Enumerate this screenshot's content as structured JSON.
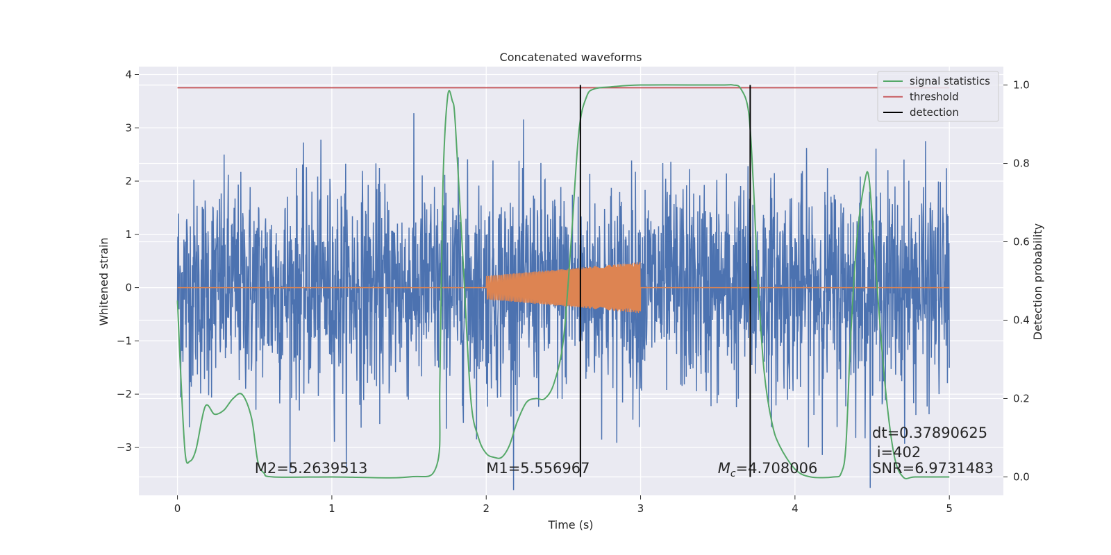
{
  "chart_data": {
    "type": "line",
    "title": "Concatenated waveforms",
    "xlabel": "Time (s)",
    "ylabel_left": "Whitened strain",
    "ylabel_right": "Detection probability",
    "xlim": [
      -0.25,
      5.35
    ],
    "ylim_left": [
      -3.9,
      4.15
    ],
    "ylim_right": [
      -0.047,
      1.047
    ],
    "x_ticks": [
      0,
      1,
      2,
      3,
      4,
      5
    ],
    "x_tick_labels": [
      "0",
      "1",
      "2",
      "3",
      "4",
      "5"
    ],
    "y_left_ticks": [
      -3,
      -2,
      -1,
      0,
      1,
      2,
      3,
      4
    ],
    "y_left_tick_labels": [
      "−3",
      "−2",
      "−1",
      "0",
      "1",
      "2",
      "3",
      "4"
    ],
    "y_right_ticks": [
      0.0,
      0.2,
      0.4,
      0.6,
      0.8,
      1.0
    ],
    "y_right_tick_labels": [
      "0.0",
      "0.2",
      "0.4",
      "0.6",
      "0.8",
      "1.0"
    ],
    "grid": true,
    "legend_position": "top-right",
    "legend": [
      {
        "label": "signal statistics",
        "color": "#55a868"
      },
      {
        "label": "threshold",
        "color": "#c44e52"
      },
      {
        "label": "detection",
        "color": "#000000"
      }
    ],
    "series": [
      {
        "name": "strain",
        "axis": "left",
        "color": "#4c72b0",
        "x_range": [
          0,
          5
        ],
        "amplitude_typical": 1.0,
        "amplitude_peak": 3.8
      },
      {
        "name": "template",
        "axis": "left",
        "color": "#dd8452",
        "x_range": [
          0,
          5
        ],
        "chirp_x_range": [
          2,
          3
        ],
        "chirp_amplitude": [
          0.22,
          0.48
        ]
      },
      {
        "name": "signal statistics",
        "axis": "right",
        "color": "#55a868",
        "x": [
          0,
          0.02,
          0.05,
          0.08,
          0.12,
          0.18,
          0.24,
          0.3,
          0.36,
          0.42,
          0.48,
          0.52,
          0.56,
          0.62,
          1.0,
          1.5,
          1.68,
          1.7,
          1.72,
          1.75,
          1.78,
          1.8,
          1.85,
          1.9,
          1.95,
          2.0,
          2.05,
          2.1,
          2.15,
          2.2,
          2.26,
          2.32,
          2.38,
          2.44,
          2.5,
          2.55,
          2.6,
          2.65,
          2.7,
          2.8,
          3.0,
          3.5,
          3.6,
          3.65,
          3.7,
          3.73,
          3.76,
          3.8,
          3.85,
          3.9,
          4.0,
          4.1,
          4.25,
          4.3,
          4.33,
          4.36,
          4.4,
          4.45,
          4.48,
          4.52,
          4.58,
          4.64,
          4.7,
          4.78,
          5.0
        ],
        "y": [
          0.45,
          0.27,
          0.06,
          0.04,
          0.07,
          0.18,
          0.16,
          0.17,
          0.2,
          0.21,
          0.15,
          0.04,
          0.01,
          0.0,
          0.0,
          0.0,
          0.03,
          0.25,
          0.75,
          0.97,
          0.96,
          0.9,
          0.55,
          0.2,
          0.1,
          0.06,
          0.05,
          0.05,
          0.08,
          0.14,
          0.19,
          0.2,
          0.2,
          0.24,
          0.35,
          0.6,
          0.88,
          0.97,
          0.99,
          0.995,
          1.0,
          1.0,
          1.0,
          0.99,
          0.93,
          0.75,
          0.5,
          0.27,
          0.14,
          0.08,
          0.02,
          0.0,
          0.0,
          0.01,
          0.08,
          0.35,
          0.6,
          0.75,
          0.76,
          0.55,
          0.25,
          0.06,
          0.0,
          0.0,
          0.0
        ]
      },
      {
        "name": "threshold",
        "axis": "right",
        "color": "#c44e52",
        "x": [
          0,
          5
        ],
        "y": [
          0.993,
          0.993
        ]
      }
    ],
    "detections_x": [
      2.61,
      3.71
    ],
    "detection_color": "#000000",
    "annotations": [
      {
        "text": "M2=5.2639513",
        "x": 0.5,
        "y_right": 0.01
      },
      {
        "text": "M1=5.556967",
        "x": 2.0,
        "y_right": 0.01
      },
      {
        "text": "=4.708006",
        "prefix": "M",
        "prefix_sub": "c",
        "x": 3.5,
        "y_right": 0.01
      },
      {
        "text": "SNR=6.9731483",
        "x": 4.5,
        "y_right": 0.01
      },
      {
        "text": "i=402",
        "x": 4.53,
        "y_right": 0.05
      },
      {
        "text": "dt=0.37890625",
        "x": 4.5,
        "y_right": 0.1
      }
    ]
  }
}
